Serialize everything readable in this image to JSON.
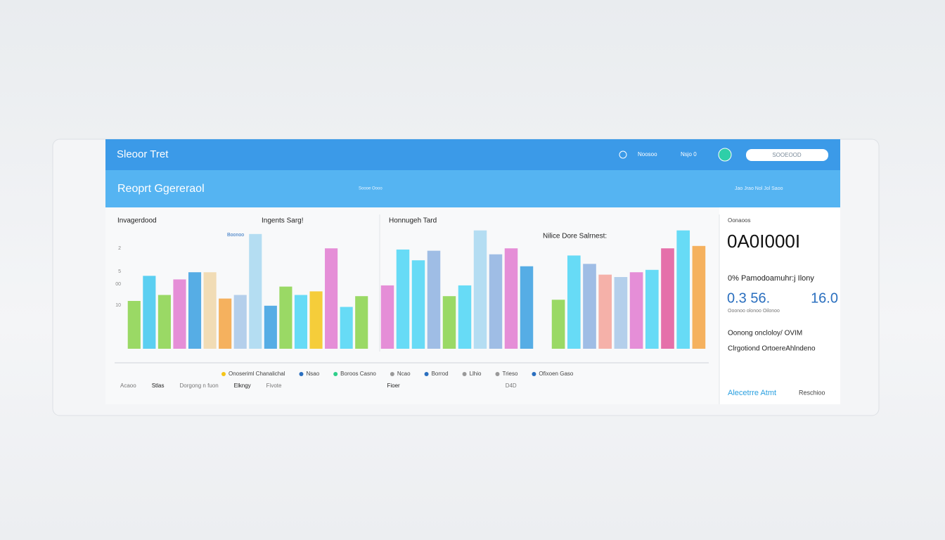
{
  "header": {
    "title": "Sleoor Tret",
    "nav": [
      "Noosoo",
      "Nsjo 0"
    ],
    "search": "SOOEOOD"
  },
  "banner": {
    "title": "Reoprt Ggereraol",
    "subtitle": "Soooe Oooo",
    "meta": "Jao  Jrao  Nol  Jol  Saoo"
  },
  "charts": [
    {
      "type": "bar",
      "title": "Invagerdood",
      "subtitle": "Ingents Sarg!",
      "tag": "Boonoo",
      "ylim": [
        0,
        10
      ],
      "side_labels": [
        "2",
        "5",
        "00",
        "10"
      ],
      "values": [
        4.0,
        6.1,
        4.5,
        5.8,
        6.4,
        6.4,
        4.2,
        4.5,
        9.6,
        3.6,
        5.2,
        4.5,
        4.8,
        8.4,
        3.5,
        4.4
      ],
      "colors": [
        "#8ad44a",
        "#3fc8ef",
        "#8ad44a",
        "#e27bd0",
        "#3aa0e0",
        "#f0d7a8",
        "#f5a442",
        "#a8c8e8",
        "#a8d8f0",
        "#3aa0e0",
        "#8ad44a",
        "#4dd6f5",
        "#f5c518",
        "#e27bd0",
        "#4dd6f5",
        "#8ad44a"
      ]
    },
    {
      "type": "bar",
      "title": "Honnugeh Tard",
      "ylim": [
        0,
        10
      ],
      "values": [
        5.3,
        8.3,
        7.4,
        8.2,
        4.4,
        5.3,
        9.9,
        7.9,
        8.4,
        6.9
      ],
      "colors": [
        "#e27bd0",
        "#4dd6f5",
        "#4dd6f5",
        "#8fb3e0",
        "#8ad44a",
        "#4dd6f5",
        "#a8d8f0",
        "#8fb3e0",
        "#e27bd0",
        "#3aa0e0"
      ]
    },
    {
      "type": "bar",
      "title": "Nilice Dore Salrnest:",
      "ylim": [
        0,
        10
      ],
      "values": [
        4.1,
        7.8,
        7.1,
        6.2,
        6.0,
        6.4,
        6.6,
        8.4,
        9.9,
        8.6
      ],
      "colors": [
        "#8ad44a",
        "#4dd6f5",
        "#8fb3e0",
        "#f5a49a",
        "#a8c8e8",
        "#e27bd0",
        "#4dd6f5",
        "#e2589b",
        "#4dd6f5",
        "#f5a442"
      ]
    }
  ],
  "legend": {
    "row1": [
      "Onoseriml Chanalichal",
      "Nsao",
      "Boroos Casno",
      "Ncao",
      "Borrod",
      "Llhio",
      "Trieso",
      "Ofixoen Gaso"
    ],
    "row2": [
      "Acaoo",
      "Stlas",
      "Dorgong n fuon",
      "Elkngy",
      "Fivote",
      "Fioer",
      "D4D"
    ]
  },
  "side_panel": {
    "label": "Oonaoos",
    "big": "0A0I000I",
    "caption": "0% Pamodoamuhr:j Ilony",
    "left_value": "0.3 56.",
    "right_value": "16.0",
    "note": "Ooonoo olonoo Oilonoo",
    "line1": "Oonong oncloloy/ OVIM",
    "line2": "Clrgotiond OrtoereAhlndeno",
    "link": "Alecetrre Atmt",
    "action": "Reschioo"
  }
}
